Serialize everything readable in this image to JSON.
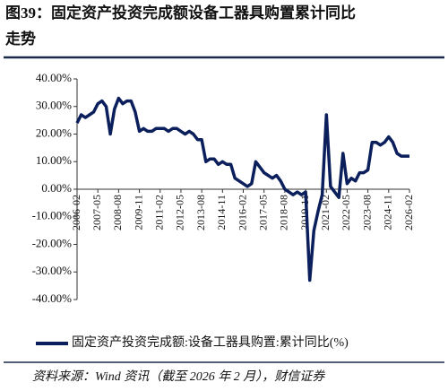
{
  "chart_data": {
    "type": "line",
    "title": "图39：固定资产投资完成额设备工器具购置累计同比",
    "title_line2": "走势",
    "source": "资料来源：Wind 资讯（截至 2026 年 2 月），财信证券",
    "x": [
      "2006-02",
      "2006-05",
      "2006-08",
      "2006-11",
      "2007-02",
      "2007-05",
      "2007-08",
      "2007-11",
      "2008-02",
      "2008-05",
      "2008-08",
      "2008-11",
      "2009-02",
      "2009-05",
      "2009-08",
      "2009-11",
      "2010-02",
      "2010-05",
      "2010-08",
      "2010-11",
      "2011-02",
      "2011-05",
      "2011-08",
      "2011-11",
      "2012-02",
      "2012-05",
      "2012-08",
      "2012-11",
      "2013-02",
      "2013-05",
      "2013-08",
      "2013-11",
      "2014-02",
      "2014-05",
      "2014-08",
      "2014-11",
      "2015-02",
      "2015-05",
      "2015-08",
      "2015-11",
      "2016-02",
      "2016-05",
      "2016-08",
      "2016-11",
      "2017-02",
      "2017-05",
      "2017-08",
      "2017-11",
      "2018-02",
      "2018-05",
      "2018-08",
      "2018-11",
      "2019-02",
      "2019-05",
      "2019-08",
      "2019-11",
      "2020-02",
      "2020-05",
      "2020-08",
      "2020-11",
      "2021-02",
      "2021-05",
      "2021-08",
      "2021-11",
      "2022-02",
      "2022-05",
      "2022-08",
      "2022-11",
      "2023-02",
      "2023-05",
      "2023-08",
      "2023-11",
      "2024-02",
      "2024-05",
      "2024-08",
      "2024-11",
      "2025-02",
      "2025-05",
      "2025-08",
      "2025-11",
      "2026-02"
    ],
    "series": [
      {
        "name": "固定资产投资完成额:设备工器具购置:累计同比(%)",
        "color": "#0b1f5c",
        "values": [
          24,
          27,
          26,
          27,
          28,
          31,
          32,
          30,
          20,
          29,
          33,
          31,
          32,
          32,
          28,
          21,
          22,
          21,
          21,
          22,
          22,
          22,
          21,
          22,
          22,
          21,
          20,
          21,
          20,
          18,
          18,
          10,
          11,
          11,
          9,
          10,
          9,
          9,
          4,
          3,
          2,
          1,
          2,
          10,
          8,
          6,
          5,
          4,
          5,
          3,
          0,
          -1,
          -2,
          -1,
          -2,
          -1,
          -33,
          -15,
          -8,
          -2,
          27,
          1,
          -1,
          -3,
          13,
          2,
          4,
          3,
          6,
          6,
          7,
          17,
          17,
          16,
          17,
          19,
          17,
          13,
          12,
          12,
          12
        ]
      }
    ],
    "ylim": [
      -40,
      40
    ],
    "yticks": [
      {
        "value": 40,
        "label": "40.00%"
      },
      {
        "value": 30,
        "label": "30.00%"
      },
      {
        "value": 20,
        "label": "20.00%"
      },
      {
        "value": 10,
        "label": "10.00%"
      },
      {
        "value": 0,
        "label": "0.00%"
      },
      {
        "value": -10,
        "label": "-10.00%"
      },
      {
        "value": -20,
        "label": "-20.00%"
      },
      {
        "value": -30,
        "label": "-30.00%"
      },
      {
        "value": -40,
        "label": "-40.00%"
      }
    ],
    "xticks": [
      "2006-02",
      "2007-05",
      "2008-08",
      "2009-11",
      "2011-02",
      "2012-05",
      "2013-08",
      "2014-11",
      "2016-02",
      "2017-05",
      "2018-08",
      "2019-11",
      "2021-02",
      "2022-05",
      "2023-08",
      "2024-11",
      "2026-02"
    ],
    "legend": "bottom-left"
  }
}
